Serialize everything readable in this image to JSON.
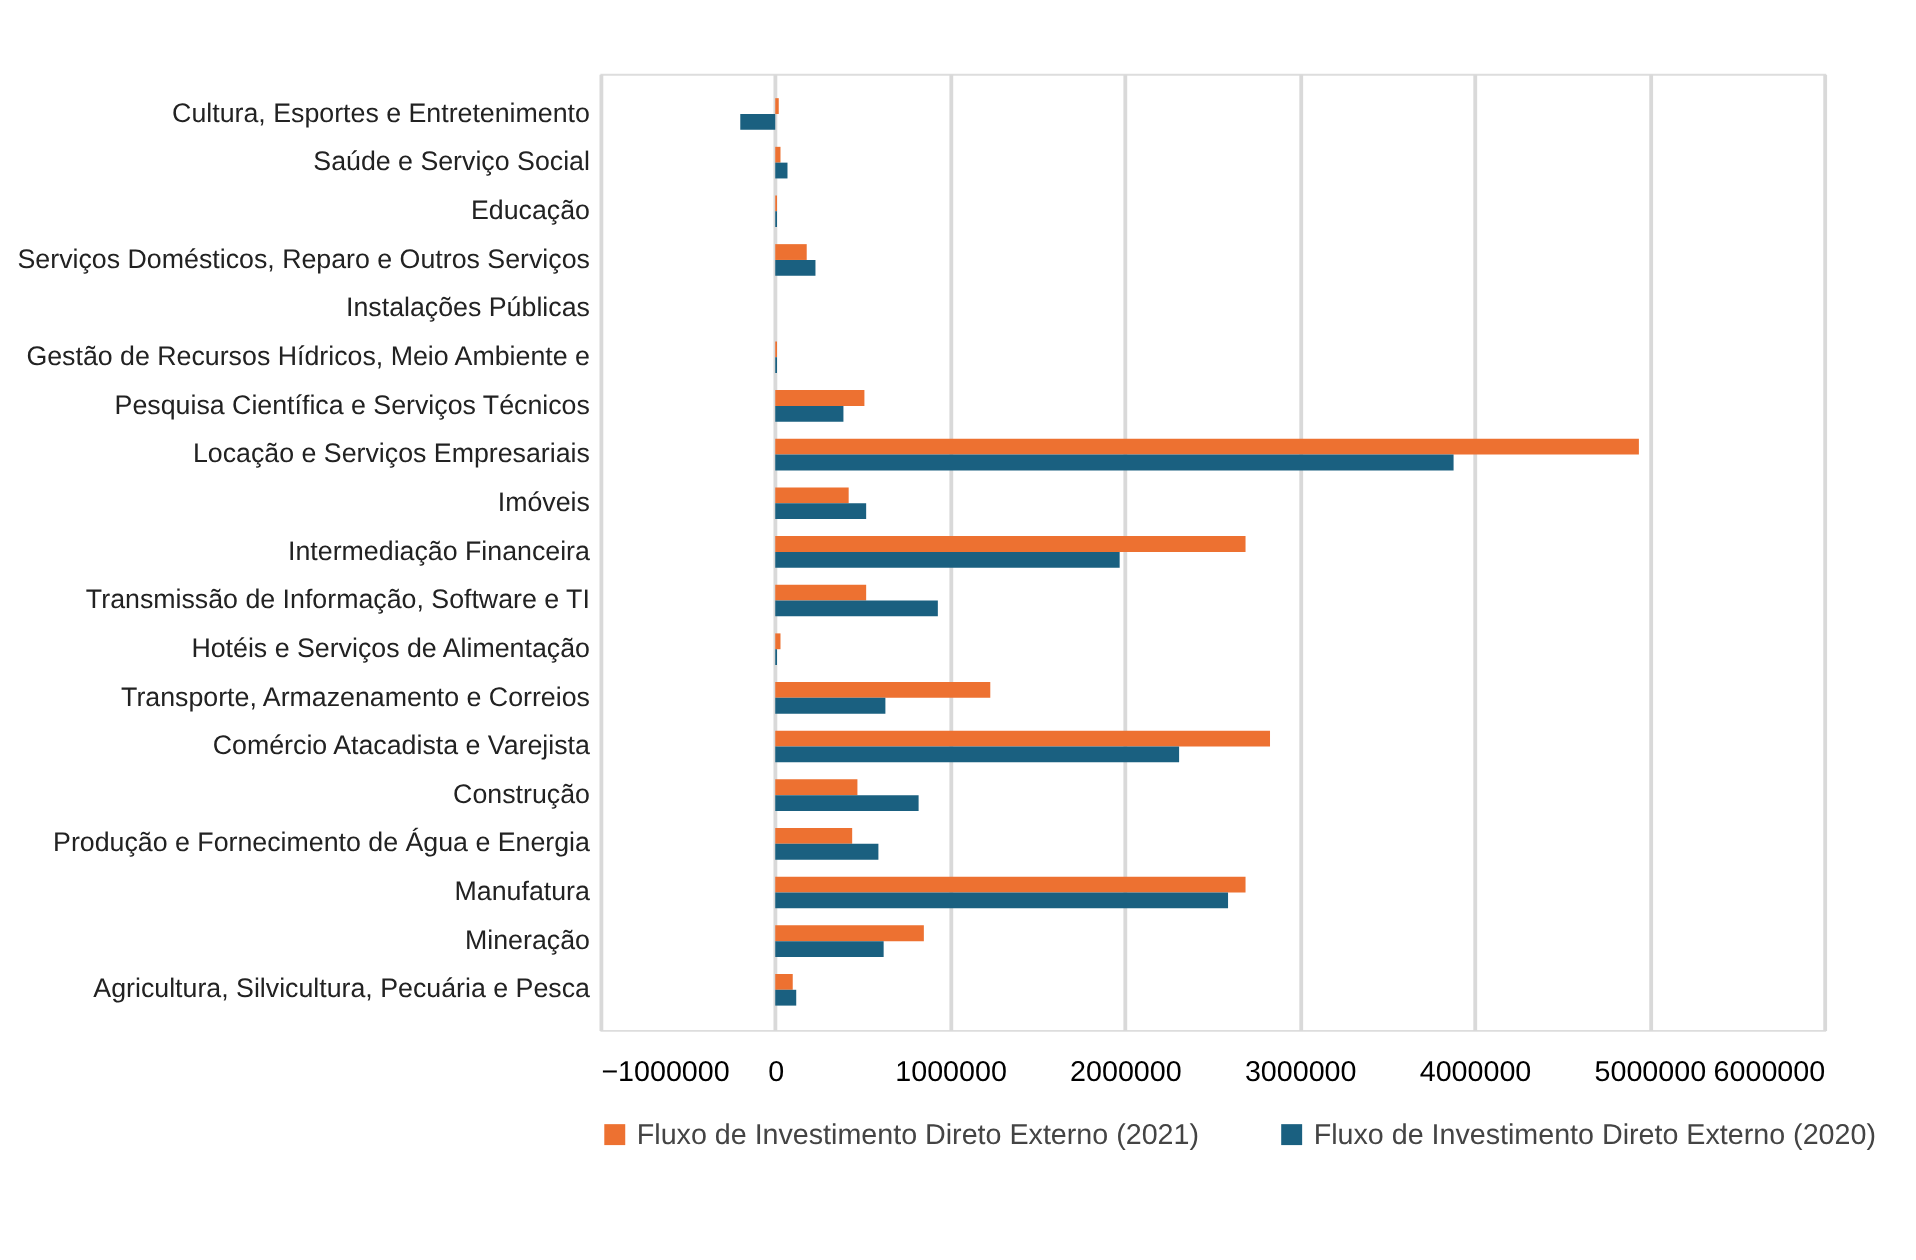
{
  "chart_data": {
    "type": "bar",
    "orientation": "horizontal",
    "categories": [
      "Cultura, Esportes e Entretenimento",
      "Saúde e Serviço Social",
      "Educação",
      "Serviços Domésticos, Reparo e Outros Serviços",
      "Instalações Públicas",
      "Gestão de Recursos Hídricos, Meio Ambiente e",
      "Pesquisa Científica e Serviços Técnicos",
      "Locação e Serviços Empresariais",
      "Imóveis",
      "Intermediação Financeira",
      "Transmissão de Informação, Software e TI",
      "Hotéis e Serviços de Alimentação",
      "Transporte, Armazenamento e Correios",
      "Comércio Atacadista e Varejista",
      "Construção",
      "Produção e Fornecimento de Água e Energia",
      "Manufatura",
      "Mineração",
      "Agricultura, Silvicultura, Pecuária e Pesca"
    ],
    "series": [
      {
        "name": "Fluxo de Investimento Direto Externo (2021)",
        "color": "#ed7131",
        "values": [
          20000,
          30000,
          10000,
          180000,
          0,
          10000,
          510000,
          4940000,
          420000,
          2690000,
          520000,
          30000,
          1230000,
          2830000,
          470000,
          440000,
          2690000,
          850000,
          100000
        ]
      },
      {
        "name": "Fluxo de Investimento Direto Externo (2020)",
        "color": "#1a6080",
        "values": [
          -200000,
          70000,
          10000,
          230000,
          0,
          10000,
          390000,
          3880000,
          520000,
          1970000,
          930000,
          10000,
          630000,
          2310000,
          820000,
          590000,
          2590000,
          620000,
          120000
        ]
      }
    ],
    "xlim": [
      -1000000,
      6000000
    ],
    "xticks": [
      -1000000,
      0,
      1000000,
      2000000,
      3000000,
      4000000,
      5000000,
      6000000
    ],
    "grid": "x",
    "legend": "bottom"
  }
}
